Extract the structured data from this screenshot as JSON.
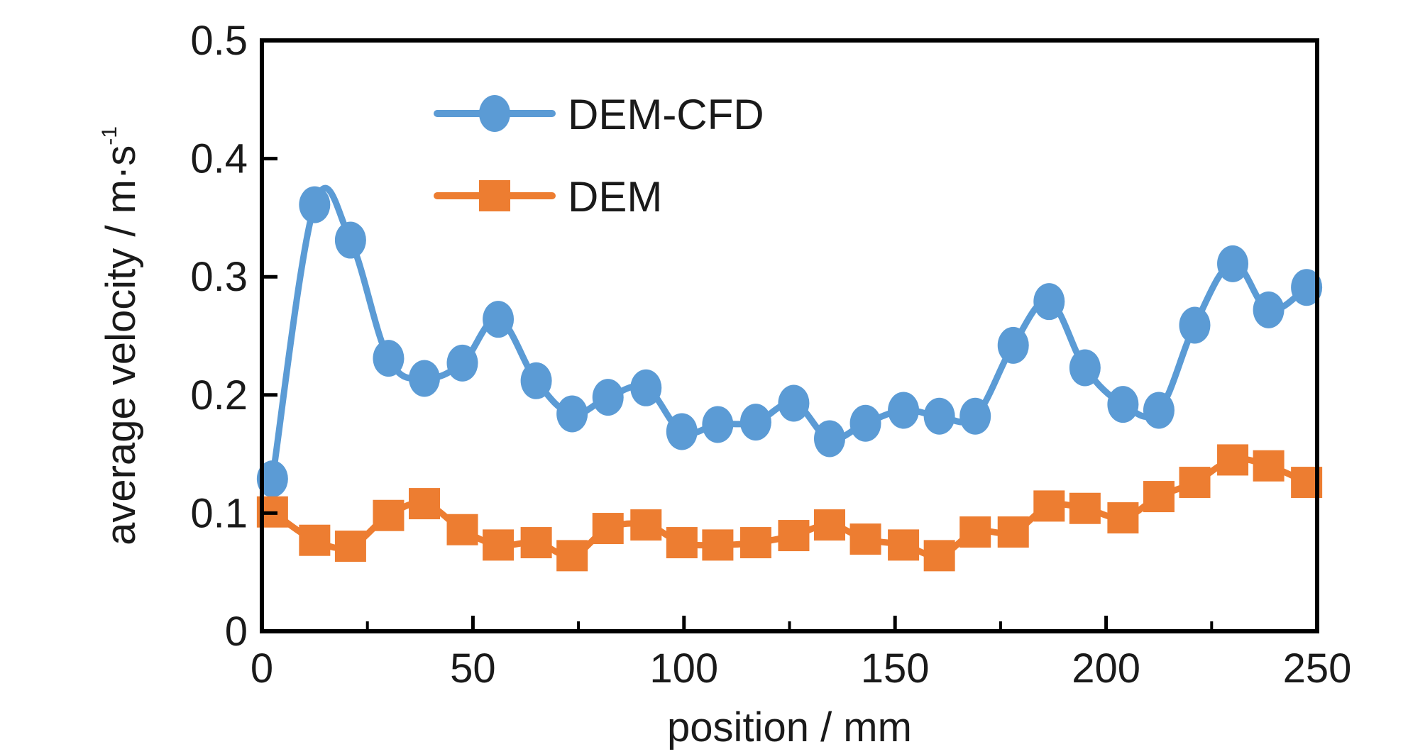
{
  "chart_data": {
    "type": "line",
    "title": "",
    "xlabel": "position / mm",
    "ylabel": "average velocity / m·s",
    "ylabel_superscript": "-1",
    "xlim": [
      0,
      250
    ],
    "ylim": [
      0,
      0.5
    ],
    "xticks": [
      0,
      50,
      100,
      150,
      200,
      250
    ],
    "xtick_labels": [
      "0",
      "50",
      "100",
      "150",
      "200",
      "250"
    ],
    "yticks": [
      0,
      0.1,
      0.2,
      0.3,
      0.4,
      0.5
    ],
    "ytick_labels": [
      "0",
      "0.1",
      "0.2",
      "0.3",
      "0.4",
      "0.5"
    ],
    "grid": false,
    "legend_position": "top-left",
    "x": [
      2.5,
      12.5,
      21,
      30,
      38.5,
      47.5,
      56,
      65,
      73.5,
      82,
      91,
      99.5,
      108,
      117,
      126,
      134.5,
      143,
      152,
      160.5,
      169,
      178,
      186.5,
      195,
      204,
      212.5,
      221,
      230,
      238.5,
      247.5
    ],
    "series": [
      {
        "name": "DEM-CFD",
        "color": "#5B9BD5",
        "marker": "circle",
        "values": [
          0.129,
          0.361,
          0.331,
          0.231,
          0.214,
          0.227,
          0.264,
          0.212,
          0.184,
          0.198,
          0.206,
          0.169,
          0.175,
          0.177,
          0.193,
          0.163,
          0.176,
          0.187,
          0.182,
          0.182,
          0.242,
          0.279,
          0.223,
          0.192,
          0.187,
          0.259,
          0.311,
          0.272,
          0.291
        ]
      },
      {
        "name": "DEM",
        "color": "#ED7D31",
        "marker": "square",
        "values": [
          0.101,
          0.077,
          0.072,
          0.098,
          0.108,
          0.086,
          0.073,
          0.075,
          0.064,
          0.087,
          0.09,
          0.075,
          0.073,
          0.075,
          0.081,
          0.09,
          0.078,
          0.073,
          0.064,
          0.084,
          0.084,
          0.106,
          0.104,
          0.096,
          0.114,
          0.126,
          0.145,
          0.14,
          0.126
        ]
      }
    ]
  }
}
